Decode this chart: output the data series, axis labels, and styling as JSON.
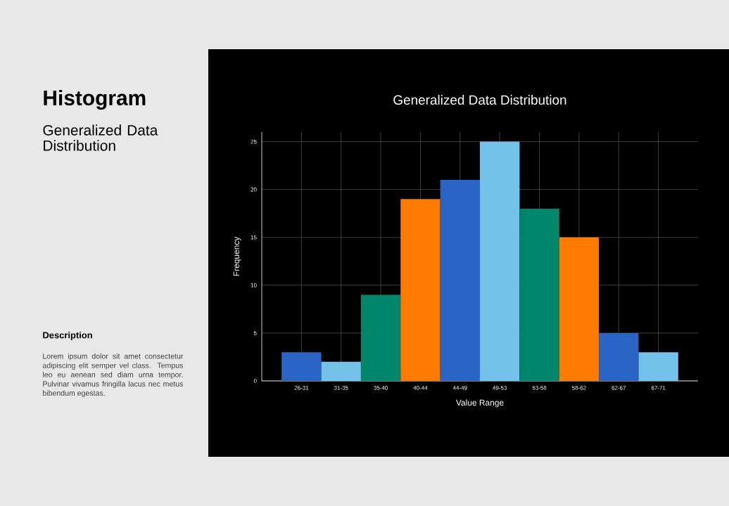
{
  "chart_data": {
    "type": "bar",
    "title": "Generalized Data Distribution",
    "xlabel": "Value Range",
    "ylabel": "Frequency",
    "categories": [
      "26-31",
      "31-35",
      "35-40",
      "40-44",
      "44-49",
      "49-53",
      "53-58",
      "58-62",
      "62-67",
      "67-71"
    ],
    "values": [
      3,
      2,
      9,
      19,
      21,
      25,
      18,
      15,
      5,
      3
    ],
    "colors": [
      "#2a64c4",
      "#74c2ea",
      "#00866b",
      "#ff7a00",
      "#2a64c4",
      "#74c2ea",
      "#00866b",
      "#ff7a00",
      "#2a64c4",
      "#74c2ea"
    ],
    "ylim": [
      0,
      26
    ],
    "yticks": [
      0,
      5,
      10,
      15,
      20,
      25
    ],
    "grid": true,
    "annotations": [
      "Histogram",
      "Generalized Data Distribution",
      "Description",
      "Lorem ipsum dolor sit amet consectetur adipiscing elit semper vel class. Tempus leo eu aenean sed diam urna tempor. Pulvinar vivamus fringilla lacus nec metus bibendum egestas."
    ]
  }
}
